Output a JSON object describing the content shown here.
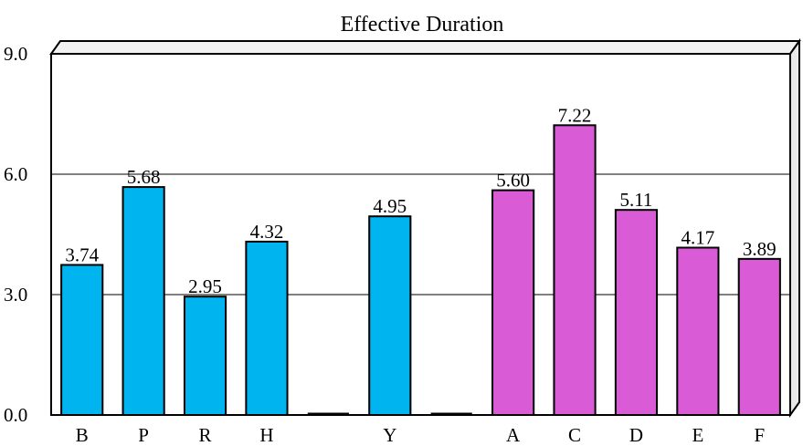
{
  "chart_data": {
    "type": "bar",
    "title": "Effective Duration",
    "xlabel": "",
    "ylabel": "",
    "ylim": [
      0,
      9
    ],
    "yticks": [
      "0.0",
      "3.0",
      "6.0",
      "9.0"
    ],
    "grid": true,
    "categories": [
      "B",
      "P",
      "R",
      "H",
      "",
      "Y",
      "",
      "A",
      "C",
      "D",
      "E",
      "F"
    ],
    "values": [
      3.74,
      5.68,
      2.95,
      4.32,
      null,
      4.95,
      null,
      5.6,
      7.22,
      5.11,
      4.17,
      3.89
    ],
    "value_labels": [
      "3.74",
      "5.68",
      "2.95",
      "4.32",
      "",
      "4.95",
      "",
      "5.60",
      "7.22",
      "5.11",
      "4.17",
      "3.89"
    ],
    "bar_colors": [
      "#00b4f0",
      "#00b4f0",
      "#00b4f0",
      "#00b4f0",
      "",
      "#00b4f0",
      "",
      "#d95bd6",
      "#d95bd6",
      "#d95bd6",
      "#d95bd6",
      "#d95bd6"
    ]
  },
  "colors": {
    "group_1": "#00b4f0",
    "group_2": "#d95bd6",
    "frame": "#000000",
    "gridline": "#000000"
  }
}
